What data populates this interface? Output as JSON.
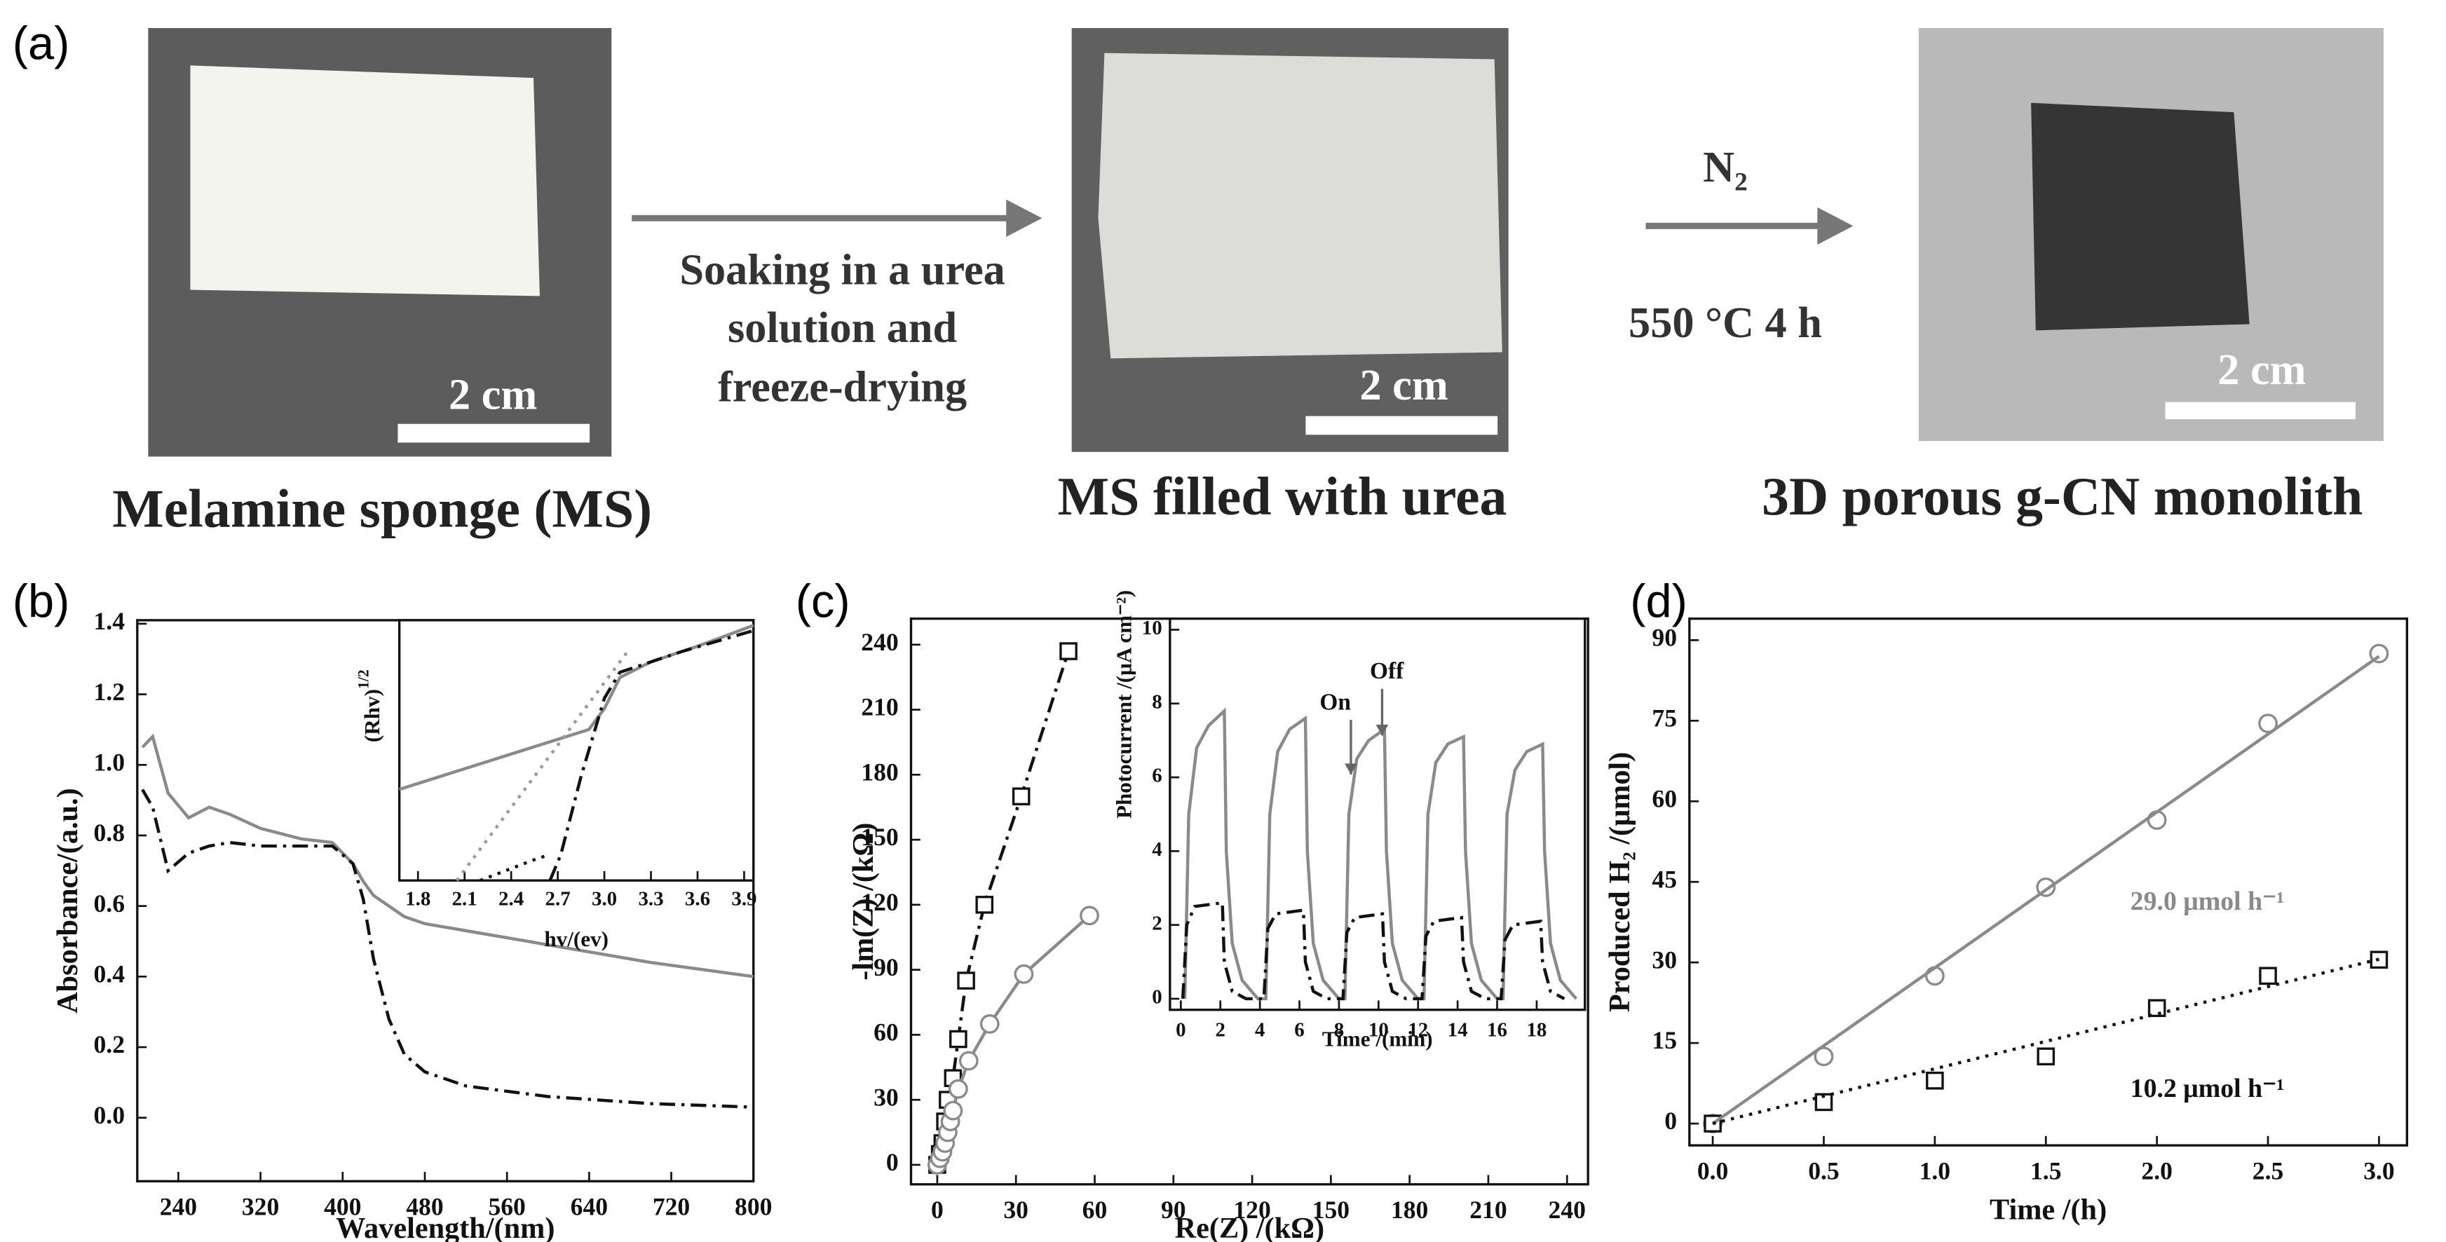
{
  "panel_a": {
    "panel_label": "(a)",
    "scale_bars": [
      "2 cm",
      "2 cm",
      "2 cm"
    ],
    "process_text": [
      "Soaking in a urea",
      "solution and",
      "freeze-drying"
    ],
    "gas": "N₂",
    "condition": "550 °C 4 h",
    "captions": [
      "Melamine sponge (MS)",
      "MS filled with urea",
      "3D porous g-CN monolith"
    ]
  },
  "chart_data": [
    {
      "type": "line",
      "panel_label": "(b)",
      "xlabel": "Wavelength/(nm)",
      "ylabel": "Absorbance/(a.u.)",
      "xlim": [
        200,
        800
      ],
      "ylim": [
        -0.18,
        1.41
      ],
      "xticks": [
        240,
        320,
        400,
        480,
        560,
        640,
        720,
        800
      ],
      "yticks": [
        {
          "value": 0,
          "label": "0.0"
        },
        0.2,
        0.4,
        0.6,
        0.8,
        {
          "value": 1,
          "label": "1.0"
        },
        1.2,
        1.4
      ],
      "x": [
        205,
        215,
        230,
        250,
        270,
        290,
        320,
        360,
        390,
        410,
        420,
        430,
        445,
        460,
        480,
        520,
        600,
        700,
        800
      ],
      "series": [
        {
          "color": "#8a8a8a",
          "line": "solid",
          "values": [
            1.05,
            1.08,
            0.92,
            0.85,
            0.88,
            0.86,
            0.82,
            0.79,
            0.78,
            0.72,
            0.67,
            0.63,
            0.6,
            0.57,
            0.55,
            0.53,
            0.49,
            0.44,
            0.4
          ]
        },
        {
          "color": "#111111",
          "line": "dashdot",
          "values": [
            0.93,
            0.88,
            0.7,
            0.75,
            0.77,
            0.78,
            0.77,
            0.77,
            0.77,
            0.72,
            0.62,
            0.45,
            0.28,
            0.18,
            0.13,
            0.09,
            0.06,
            0.04,
            0.03
          ]
        }
      ]
    },
    {
      "type": "line",
      "xlabel": "hv/(ev)",
      "ylabel": "(Rhv)",
      "ylabel_superscript": "1/2",
      "xlim": [
        1.68,
        3.96
      ],
      "ylim": [
        0,
        1
      ],
      "xticks": [
        1.8,
        2.1,
        2.4,
        2.7,
        {
          "value": 3,
          "label": "3.0"
        },
        3.3,
        3.6,
        3.9
      ],
      "series": [
        {
          "color": "#8a8a8a",
          "line": "solid",
          "x": [
            1.68,
            2.9,
            3.0,
            3.1,
            3.3,
            3.6,
            3.96
          ],
          "values": [
            0.35,
            0.58,
            0.66,
            0.78,
            0.84,
            0.9,
            0.98
          ]
        },
        {
          "color": "#111111",
          "line": "dashdot",
          "x": [
            2.65,
            2.72,
            2.85,
            3.0,
            3.1,
            3.5,
            3.96
          ],
          "values": [
            0,
            0.1,
            0.4,
            0.7,
            0.8,
            0.88,
            0.96
          ]
        },
        {
          "color": "#9a9a9a",
          "line": "dotted",
          "x": [
            2.05,
            3.15
          ],
          "values": [
            0,
            0.88
          ]
        },
        {
          "color": "#111111",
          "line": "dotted",
          "x": [
            2.2,
            2.55,
            2.65
          ],
          "values": [
            0,
            0.08,
            0.1
          ]
        }
      ]
    },
    {
      "type": "scatter",
      "panel_label": "(c)",
      "xlabel": "Re(Z) /(kΩ)",
      "ylabel": "-lm(Z) /(kΩ)",
      "xlim": [
        -10,
        248
      ],
      "ylim": [
        -9,
        252
      ],
      "xticks": [
        0,
        30,
        60,
        90,
        120,
        150,
        180,
        210,
        240
      ],
      "yticks": [
        0,
        30,
        60,
        90,
        120,
        150,
        180,
        210,
        240
      ],
      "series": [
        {
          "color": "#111111",
          "line": "dashdot",
          "marker": "square",
          "x": [
            0,
            1,
            2,
            3,
            4,
            6,
            8,
            11,
            18,
            32,
            50
          ],
          "values": [
            0,
            5,
            10,
            20,
            30,
            40,
            58,
            85,
            120,
            170,
            237
          ]
        },
        {
          "color": "#8a8a8a",
          "line": "solid",
          "marker": "circle",
          "x": [
            0,
            1,
            2,
            3,
            4,
            5,
            6,
            8,
            12,
            20,
            33,
            58
          ],
          "values": [
            0,
            3,
            6,
            10,
            15,
            20,
            25,
            35,
            48,
            65,
            88,
            115
          ]
        }
      ]
    },
    {
      "type": "line",
      "xlabel": "Time /(min)",
      "ylabel": "Photocurrent /(μA cm⁻²)",
      "xlim": [
        -0.55,
        20.44
      ],
      "ylim": [
        -0.3,
        10.3
      ],
      "xticks": [
        0,
        2,
        4,
        6,
        8,
        10,
        12,
        14,
        16,
        18
      ],
      "yticks": [
        0,
        2,
        4,
        6,
        8,
        10
      ],
      "annotations": [
        "On",
        "Off"
      ],
      "series": [
        {
          "color": "#8a8a8a",
          "line": "solid",
          "x": [
            0.2,
            0.4,
            0.8,
            1.4,
            2.2,
            2.3,
            2.6,
            3.1,
            3.9,
            4.3,
            4.5,
            4.9,
            5.5,
            6.3,
            6.4,
            6.7,
            7.2,
            8.0,
            8.3,
            8.5,
            8.9,
            9.5,
            10.3,
            10.4,
            10.7,
            11.2,
            12.0,
            12.3,
            12.5,
            12.9,
            13.5,
            14.3,
            14.4,
            14.7,
            15.2,
            16.0,
            16.3,
            16.5,
            16.9,
            17.5,
            18.3,
            18.4,
            18.7,
            19.2,
            20.0
          ],
          "values": [
            0,
            5,
            6.8,
            7.4,
            7.8,
            4,
            1.5,
            0.5,
            0,
            0,
            5,
            6.7,
            7.3,
            7.6,
            4,
            1.5,
            0.5,
            0,
            0,
            5,
            6.5,
            7.0,
            7.3,
            4,
            1.5,
            0.5,
            0,
            0,
            5,
            6.4,
            6.9,
            7.1,
            4,
            1.5,
            0.5,
            0,
            0,
            5,
            6.2,
            6.7,
            6.9,
            4,
            1.5,
            0.5,
            0
          ]
        },
        {
          "color": "#111111",
          "line": "dashdot",
          "x": [
            0.1,
            0.3,
            0.7,
            2.1,
            2.2,
            2.6,
            3.3,
            4.2,
            4.4,
            4.8,
            6.2,
            6.3,
            6.7,
            7.4,
            8.2,
            8.4,
            8.8,
            10.2,
            10.3,
            10.7,
            11.4,
            12.2,
            12.4,
            12.8,
            14.2,
            14.3,
            14.7,
            15.4,
            16.2,
            16.4,
            16.8,
            18.2,
            18.3,
            18.7,
            19.4
          ],
          "values": [
            0,
            2.0,
            2.5,
            2.6,
            1.0,
            0.2,
            0,
            0,
            1.9,
            2.3,
            2.4,
            1.0,
            0.2,
            0,
            0,
            1.8,
            2.2,
            2.3,
            1.0,
            0.2,
            0,
            0,
            1.7,
            2.1,
            2.2,
            1.0,
            0.2,
            0,
            0,
            1.6,
            2.0,
            2.1,
            1.0,
            0.2,
            0
          ]
        }
      ]
    },
    {
      "type": "scatter",
      "panel_label": "(d)",
      "xlabel": "Time /(h)",
      "ylabel": "Produced H₂ /(μmol)",
      "xlim": [
        -0.105,
        3.126
      ],
      "ylim": [
        -4.06,
        94
      ],
      "xticks": [
        {
          "value": 0,
          "label": "0.0"
        },
        0.5,
        {
          "value": 1,
          "label": "1.0"
        },
        1.5,
        {
          "value": 2,
          "label": "2.0"
        },
        2.5,
        {
          "value": 3,
          "label": "3.0"
        }
      ],
      "yticks": [
        0,
        15,
        30,
        45,
        60,
        75,
        90
      ],
      "x": [
        0,
        0.5,
        1,
        1.5,
        2,
        2.5,
        3
      ],
      "series": [
        {
          "color": "#8a8a8a",
          "line": "none",
          "marker": "circle",
          "values": [
            0,
            12.5,
            27.5,
            44,
            56.5,
            74.5,
            87.5
          ]
        },
        {
          "color": "#111111",
          "line": "none",
          "marker": "square",
          "values": [
            0,
            4,
            8,
            12.5,
            21.5,
            27.5,
            30.5
          ]
        }
      ],
      "fits": [
        {
          "slope": 29.0,
          "label": "29.0 μmol h⁻¹",
          "color": "#8a8a8a",
          "line": "solid"
        },
        {
          "slope": 10.2,
          "label": "10.2 μmol h⁻¹",
          "color": "#111111",
          "line": "dotted"
        }
      ]
    }
  ]
}
